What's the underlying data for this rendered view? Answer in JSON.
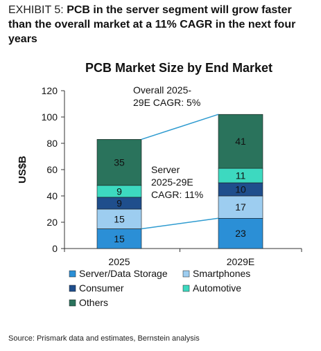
{
  "exhibit": {
    "prefix": "EXHIBIT 5: ",
    "headline": "PCB in the server segment will grow faster than the overall market at a 11% CAGR in the next four years"
  },
  "source": "Source: Prismark data and estimates, Bernstein analysis",
  "chart_data": {
    "type": "bar",
    "stacked": true,
    "title": "PCB Market Size by End Market",
    "ylabel": "US$B",
    "xlabel": "",
    "ylim": [
      0,
      120
    ],
    "yticks": [
      0,
      20,
      40,
      60,
      80,
      100,
      120
    ],
    "grid": false,
    "categories": [
      "2025",
      "2029E"
    ],
    "series": [
      {
        "name": "Server/Data Storage",
        "values": [
          15,
          23
        ],
        "color": "#2b8fd6"
      },
      {
        "name": "Smartphones",
        "values": [
          15,
          17
        ],
        "color": "#9dcdf0"
      },
      {
        "name": "Consumer",
        "values": [
          9,
          10
        ],
        "color": "#1f4e8c"
      },
      {
        "name": "Automotive",
        "values": [
          9,
          11
        ],
        "color": "#3dd9c0"
      },
      {
        "name": "Others",
        "values": [
          35,
          41
        ],
        "color": "#2a735c"
      }
    ],
    "annotations": [
      {
        "text_lines": [
          "Overall 2025-",
          "29E CAGR: 5%"
        ]
      },
      {
        "text_lines": [
          "Server",
          "2025-29E",
          "CAGR: 11%"
        ]
      }
    ],
    "connector_color": "#2e9bd0",
    "legend_position": "bottom"
  }
}
